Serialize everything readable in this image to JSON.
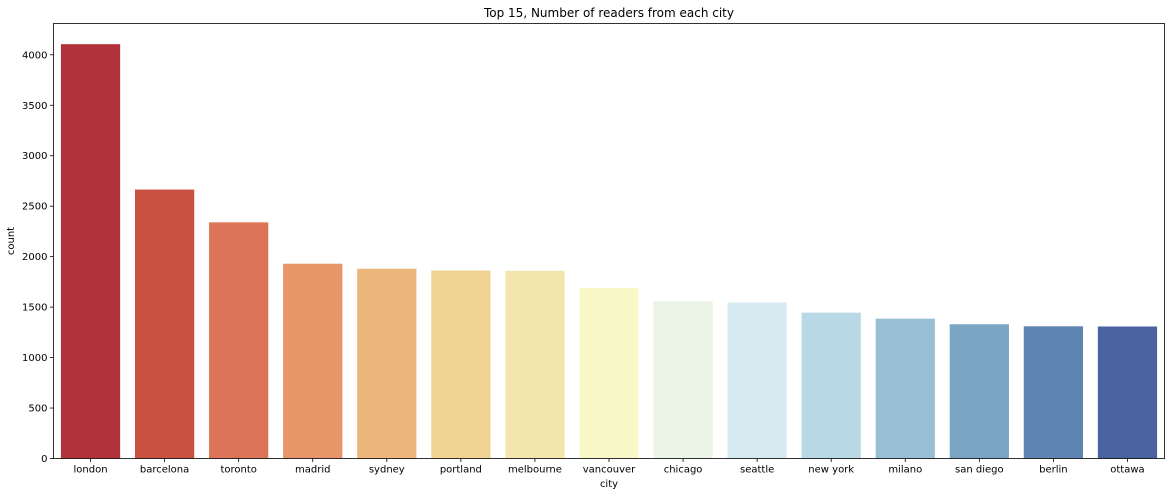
{
  "chart_data": {
    "type": "bar",
    "title": "Top 15, Number of readers from each city",
    "xlabel": "city",
    "ylabel": "count",
    "ylim": [
      0,
      4310
    ],
    "yticks": [
      0,
      500,
      1000,
      1500,
      2000,
      2500,
      3000,
      3500,
      4000
    ],
    "grid": false,
    "categories": [
      "london",
      "barcelona",
      "toronto",
      "madrid",
      "sydney",
      "portland",
      "melbourne",
      "vancouver",
      "chicago",
      "seattle",
      "new york",
      "milano",
      "san diego",
      "berlin",
      "ottawa"
    ],
    "values": [
      4105,
      2665,
      2340,
      1930,
      1880,
      1862,
      1860,
      1690,
      1560,
      1545,
      1445,
      1385,
      1330,
      1310,
      1308
    ],
    "colors": [
      "#b2323a",
      "#ca5142",
      "#dd7457",
      "#e69668",
      "#ecb67c",
      "#f0d393",
      "#f2e6ac",
      "#f8f8c7",
      "#ebf5e7",
      "#d5eaf1",
      "#b7d8e4",
      "#98bfd4",
      "#7aa5c5",
      "#5e84b2",
      "#4a63a0"
    ]
  }
}
